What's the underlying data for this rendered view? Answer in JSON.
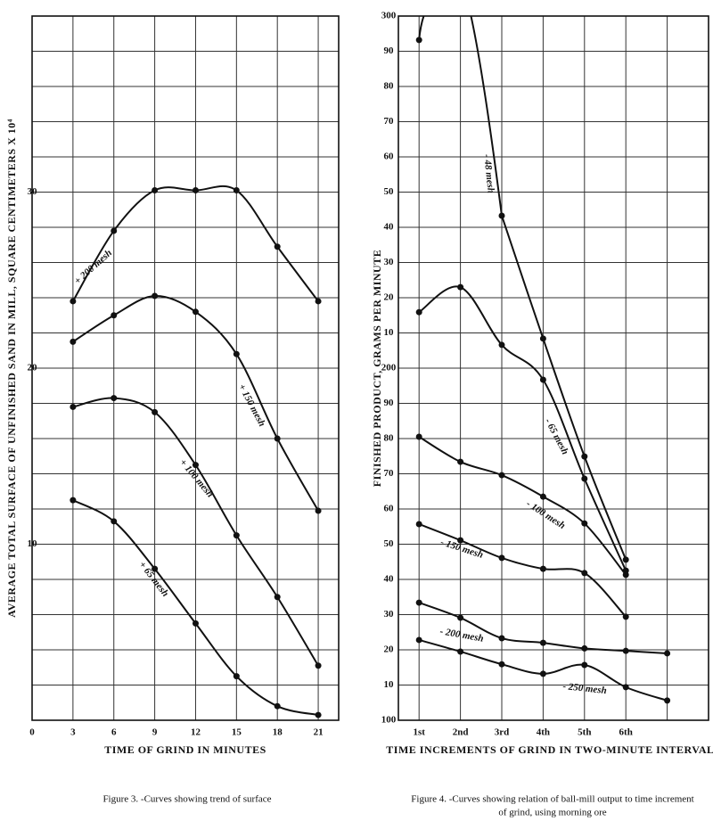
{
  "chart_data": [
    {
      "type": "line",
      "ylabel": "AVERAGE TOTAL SURFACE OF UNFINISHED SAND IN MILL, SQUARE CENTIMETERS X 10⁴",
      "xlabel": "TIME OF GRIND IN MINUTES",
      "caption": "Figure 3. -Curves showing trend of surface",
      "x": [
        3,
        6,
        9,
        12,
        15,
        18,
        21
      ],
      "xlim": [
        0,
        22.5
      ],
      "xticks": [
        0,
        3,
        6,
        9,
        12,
        15,
        18,
        21
      ],
      "ylim": [
        0,
        40
      ],
      "yticks": [
        10,
        20,
        30
      ],
      "ygrid": [
        0,
        2,
        4,
        6,
        8,
        10,
        12,
        14,
        16,
        18,
        20,
        22,
        24,
        26,
        28,
        30,
        32,
        34,
        36,
        38,
        40
      ],
      "series": [
        {
          "name": "+ 200 mesh",
          "color": "#111",
          "values": [
            23.8,
            27.8,
            30.1,
            30.1,
            30.1,
            26.9,
            23.8
          ]
        },
        {
          "name": "+ 150 mesh",
          "color": "#111",
          "values": [
            21.5,
            23.0,
            24.1,
            23.2,
            20.8,
            16.0,
            11.9
          ]
        },
        {
          "name": "+ 100 mesh",
          "color": "#111",
          "values": [
            17.8,
            18.3,
            17.5,
            14.5,
            10.5,
            7.0,
            3.1
          ]
        },
        {
          "name": "+ 65 mesh",
          "color": "#111",
          "values": [
            12.5,
            11.3,
            8.6,
            5.5,
            2.5,
            0.8,
            0.3
          ]
        }
      ]
    },
    {
      "type": "line",
      "ylabel": "FINISHED PRODUCT, GRAMS PER MINUTE",
      "xlabel": "TIME INCREMENTS OF GRIND IN TWO-MINUTE INTERVALS",
      "caption": [
        "Figure 4. -Curves showing relation of ball-mill output to time increment",
        "of grind, using morning ore"
      ],
      "x": [
        1,
        2,
        3,
        4,
        5,
        6,
        7
      ],
      "xlim": [
        0.5,
        8
      ],
      "xticks": [
        {
          "value": 1,
          "label": "1st"
        },
        {
          "value": 2,
          "label": "2nd"
        },
        {
          "value": 3,
          "label": "3rd"
        },
        {
          "value": 4,
          "label": "4th"
        },
        {
          "value": 5,
          "label": "5th"
        },
        {
          "value": 6,
          "label": "6th"
        }
      ],
      "xgrid": [
        1,
        2,
        3,
        4,
        5,
        6,
        7
      ],
      "ylim": [
        100,
        300
      ],
      "yticks": [
        100,
        {
          "value": 110,
          "label": "10"
        },
        {
          "value": 120,
          "label": "20"
        },
        {
          "value": 130,
          "label": "30"
        },
        {
          "value": 140,
          "label": "40"
        },
        {
          "value": 150,
          "label": "50"
        },
        {
          "value": 160,
          "label": "60"
        },
        {
          "value": 170,
          "label": "70"
        },
        {
          "value": 180,
          "label": "80"
        },
        {
          "value": 190,
          "label": "90"
        },
        200,
        {
          "value": 210,
          "label": "10"
        },
        {
          "value": 220,
          "label": "20"
        },
        {
          "value": 230,
          "label": "30"
        },
        {
          "value": 240,
          "label": "40"
        },
        {
          "value": 250,
          "label": "50"
        },
        {
          "value": 260,
          "label": "60"
        },
        {
          "value": 270,
          "label": "70"
        },
        {
          "value": 280,
          "label": "80"
        },
        {
          "value": 290,
          "label": "90"
        },
        300
      ],
      "series": [
        {
          "name": "- 48 mesh",
          "color": "#111",
          "values": [
            293.2,
            null,
            243.3,
            208.4,
            174.9,
            145.6,
            null
          ]
        },
        {
          "name": "- 65 mesh",
          "color": "#111",
          "values": [
            215.9,
            223.0,
            206.6,
            196.7,
            168.6,
            142.5,
            null
          ]
        },
        {
          "name": "- 100 mesh",
          "color": "#111",
          "values": [
            180.5,
            173.4,
            169.6,
            163.5,
            155.9,
            141.3,
            null
          ]
        },
        {
          "name": "- 150 mesh",
          "color": "#111",
          "values": [
            155.7,
            151.1,
            146.1,
            143.0,
            141.8,
            129.4,
            null
          ]
        },
        {
          "name": "- 200 mesh",
          "color": "#111",
          "values": [
            133.4,
            129.1,
            123.3,
            122.0,
            120.4,
            119.7,
            119.0
          ]
        },
        {
          "name": "- 250 mesh",
          "color": "#111",
          "values": [
            122.8,
            119.5,
            115.9,
            113.2,
            115.7,
            109.4,
            105.6
          ]
        }
      ]
    }
  ]
}
